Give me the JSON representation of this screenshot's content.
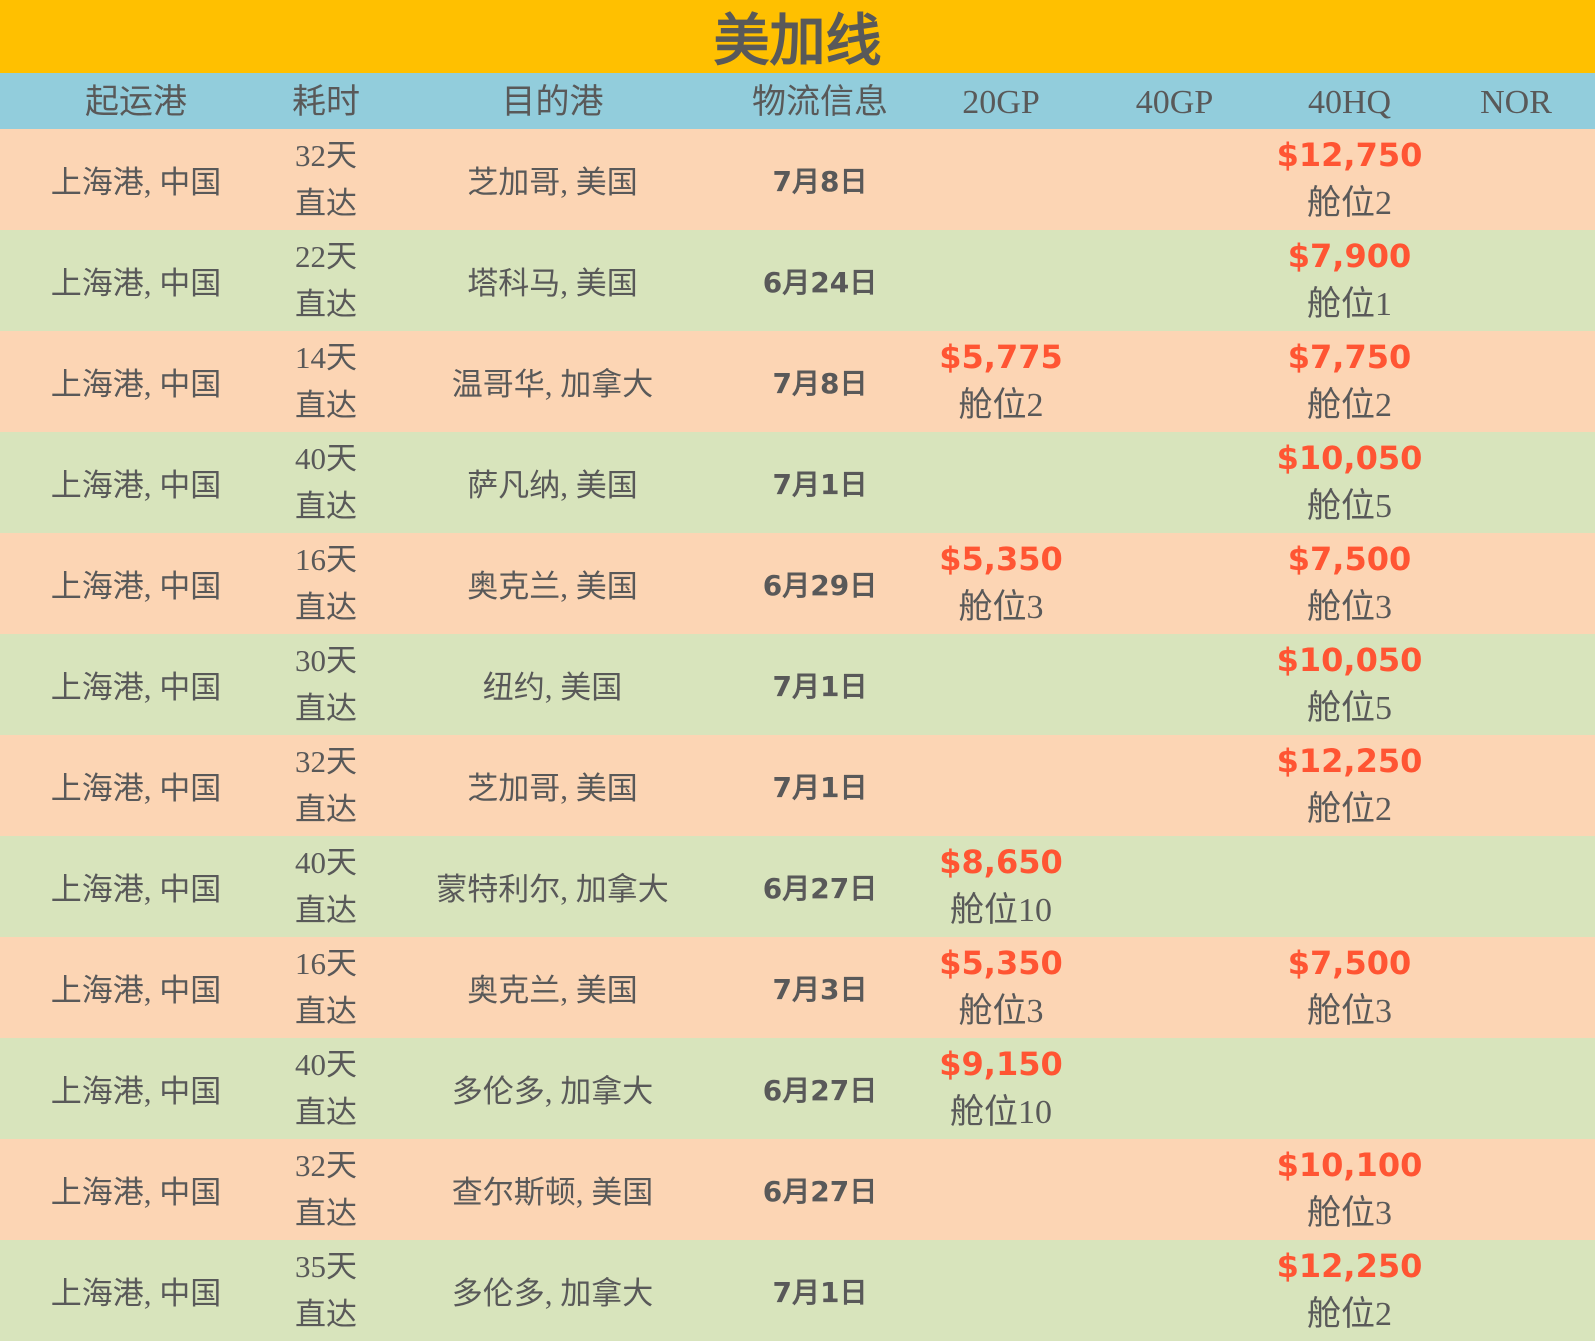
{
  "title": "美加线",
  "headers": [
    "起运港",
    "耗时",
    "目的港",
    "物流信息",
    "20GP",
    "40GP",
    "40HQ",
    "NOR"
  ],
  "colors": {
    "title_bg": "#ffc000",
    "header_bg": "#92cddc",
    "row_peach": "#fcd5b4",
    "row_green": "#d8e4bc",
    "price": "#ff5533",
    "text": "#595959"
  },
  "rows": [
    {
      "origin": "上海港, 中国",
      "days": "32天",
      "route": "直达",
      "dest": "芝加哥, 美国",
      "date": "7月8日",
      "gp20": {
        "price": "",
        "slot": ""
      },
      "gp40": {
        "price": "",
        "slot": ""
      },
      "hq40": {
        "price": "$12,750",
        "slot": "舱位2"
      },
      "nor": {
        "price": "",
        "slot": ""
      }
    },
    {
      "origin": "上海港, 中国",
      "days": "22天",
      "route": "直达",
      "dest": "塔科马, 美国",
      "date": "6月24日",
      "gp20": {
        "price": "",
        "slot": ""
      },
      "gp40": {
        "price": "",
        "slot": ""
      },
      "hq40": {
        "price": "$7,900",
        "slot": "舱位1"
      },
      "nor": {
        "price": "",
        "slot": ""
      }
    },
    {
      "origin": "上海港, 中国",
      "days": "14天",
      "route": "直达",
      "dest": "温哥华, 加拿大",
      "date": "7月8日",
      "gp20": {
        "price": "$5,775",
        "slot": "舱位2"
      },
      "gp40": {
        "price": "",
        "slot": ""
      },
      "hq40": {
        "price": "$7,750",
        "slot": "舱位2"
      },
      "nor": {
        "price": "",
        "slot": ""
      }
    },
    {
      "origin": "上海港, 中国",
      "days": "40天",
      "route": "直达",
      "dest": "萨凡纳, 美国",
      "date": "7月1日",
      "gp20": {
        "price": "",
        "slot": ""
      },
      "gp40": {
        "price": "",
        "slot": ""
      },
      "hq40": {
        "price": "$10,050",
        "slot": "舱位5"
      },
      "nor": {
        "price": "",
        "slot": ""
      }
    },
    {
      "origin": "上海港, 中国",
      "days": "16天",
      "route": "直达",
      "dest": "奥克兰, 美国",
      "date": "6月29日",
      "gp20": {
        "price": "$5,350",
        "slot": "舱位3"
      },
      "gp40": {
        "price": "",
        "slot": ""
      },
      "hq40": {
        "price": "$7,500",
        "slot": "舱位3"
      },
      "nor": {
        "price": "",
        "slot": ""
      }
    },
    {
      "origin": "上海港, 中国",
      "days": "30天",
      "route": "直达",
      "dest": "纽约, 美国",
      "date": "7月1日",
      "gp20": {
        "price": "",
        "slot": ""
      },
      "gp40": {
        "price": "",
        "slot": ""
      },
      "hq40": {
        "price": "$10,050",
        "slot": "舱位5"
      },
      "nor": {
        "price": "",
        "slot": ""
      }
    },
    {
      "origin": "上海港, 中国",
      "days": "32天",
      "route": "直达",
      "dest": "芝加哥, 美国",
      "date": "7月1日",
      "gp20": {
        "price": "",
        "slot": ""
      },
      "gp40": {
        "price": "",
        "slot": ""
      },
      "hq40": {
        "price": "$12,250",
        "slot": "舱位2"
      },
      "nor": {
        "price": "",
        "slot": ""
      }
    },
    {
      "origin": "上海港, 中国",
      "days": "40天",
      "route": "直达",
      "dest": "蒙特利尔, 加拿大",
      "date": "6月27日",
      "gp20": {
        "price": "$8,650",
        "slot": "舱位10"
      },
      "gp40": {
        "price": "",
        "slot": ""
      },
      "hq40": {
        "price": "",
        "slot": ""
      },
      "nor": {
        "price": "",
        "slot": ""
      }
    },
    {
      "origin": "上海港, 中国",
      "days": "16天",
      "route": "直达",
      "dest": "奥克兰, 美国",
      "date": "7月3日",
      "gp20": {
        "price": "$5,350",
        "slot": "舱位3"
      },
      "gp40": {
        "price": "",
        "slot": ""
      },
      "hq40": {
        "price": "$7,500",
        "slot": "舱位3"
      },
      "nor": {
        "price": "",
        "slot": ""
      }
    },
    {
      "origin": "上海港, 中国",
      "days": "40天",
      "route": "直达",
      "dest": "多伦多, 加拿大",
      "date": "6月27日",
      "gp20": {
        "price": "$9,150",
        "slot": "舱位10"
      },
      "gp40": {
        "price": "",
        "slot": ""
      },
      "hq40": {
        "price": "",
        "slot": ""
      },
      "nor": {
        "price": "",
        "slot": ""
      }
    },
    {
      "origin": "上海港, 中国",
      "days": "32天",
      "route": "直达",
      "dest": "查尔斯顿, 美国",
      "date": "6月27日",
      "gp20": {
        "price": "",
        "slot": ""
      },
      "gp40": {
        "price": "",
        "slot": ""
      },
      "hq40": {
        "price": "$10,100",
        "slot": "舱位3"
      },
      "nor": {
        "price": "",
        "slot": ""
      }
    },
    {
      "origin": "上海港, 中国",
      "days": "35天",
      "route": "直达",
      "dest": "多伦多, 加拿大",
      "date": "7月1日",
      "gp20": {
        "price": "",
        "slot": ""
      },
      "gp40": {
        "price": "",
        "slot": ""
      },
      "hq40": {
        "price": "$12,250",
        "slot": "舱位2"
      },
      "nor": {
        "price": "",
        "slot": ""
      }
    }
  ]
}
